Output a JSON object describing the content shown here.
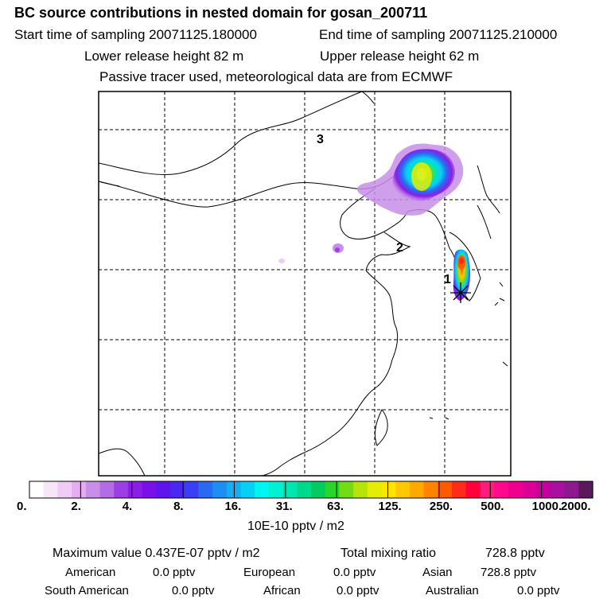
{
  "header": {
    "title": "BC  source contributions in nested domain for gosan_200711",
    "start_label": "Start time of sampling 20071125.180000",
    "end_label": "End time of sampling 20071125.210000",
    "lower_label": "Lower release height   82 m",
    "upper_label": "Upper release height   62 m",
    "tracer_label": "Passive tracer used, meteorological data are from ECMWF"
  },
  "map": {
    "region_labels": [
      "1",
      "2",
      "3"
    ],
    "gridlines": "dashed",
    "receptor_marker": "asterisk-star"
  },
  "colorbar": {
    "ticks": [
      "0.",
      "2.",
      "4.",
      "8.",
      "16.",
      "31.",
      "63.",
      "125.",
      "250.",
      "500.",
      "1000.",
      "2000."
    ],
    "unit": "10E-10 pptv / m2",
    "colors": [
      "#ffffff",
      "#f7e6f7",
      "#efccf3",
      "#e6aef0",
      "#c88ee8",
      "#b36be6",
      "#9c3ee6",
      "#8a1de6",
      "#7a10e8",
      "#5f14ee",
      "#4a28f2",
      "#3b3ef4",
      "#2a6af2",
      "#1e8ff2",
      "#12b0f3",
      "#08d0f4",
      "#00f4f4",
      "#00f0d4",
      "#00e6b0",
      "#00d88a",
      "#00cc60",
      "#2bd42a",
      "#74dc14",
      "#b4e40c",
      "#e4ec08",
      "#ffe400",
      "#ffc800",
      "#ffa800",
      "#ff8200",
      "#ff5a00",
      "#ff2a18",
      "#ff003c",
      "#ff1e78",
      "#ff0a8e",
      "#f0008f",
      "#dc0096",
      "#c6009c",
      "#aa10a0",
      "#8c1a8c",
      "#5a1a5a"
    ]
  },
  "footer": {
    "max_label": "Maximum value  0.437E-07 pptv / m2",
    "total_label": "Total mixing ratio",
    "total_value": "728.8 pptv",
    "row1": [
      "American",
      "0.0 pptv",
      "European",
      "0.0 pptv",
      "Asian",
      "728.8 pptv"
    ],
    "row2": [
      "South American",
      "0.0 pptv",
      "African",
      "0.0 pptv",
      "Australian",
      "0.0 pptv"
    ]
  }
}
